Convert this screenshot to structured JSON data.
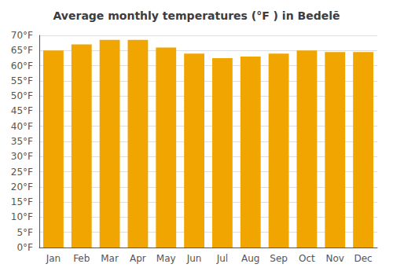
{
  "chart_data": {
    "type": "bar",
    "title": "Average monthly temperatures (°F ) in Bedelē",
    "categories": [
      "Jan",
      "Feb",
      "Mar",
      "Apr",
      "May",
      "Jun",
      "Jul",
      "Aug",
      "Sep",
      "Oct",
      "Nov",
      "Dec"
    ],
    "values": [
      65.0,
      67.0,
      68.5,
      68.5,
      66.0,
      64.0,
      62.5,
      63.0,
      64.0,
      65.0,
      64.5,
      64.5
    ],
    "color": "#F0A500",
    "ylim": [
      0,
      70
    ],
    "yticks": [
      {
        "value": 0,
        "label": "0°F"
      },
      {
        "value": 5,
        "label": "5°F"
      },
      {
        "value": 10,
        "label": "10°F"
      },
      {
        "value": 15,
        "label": "15°F"
      },
      {
        "value": 20,
        "label": "20°F"
      },
      {
        "value": 25,
        "label": "25°F"
      },
      {
        "value": 30,
        "label": "30°F"
      },
      {
        "value": 35,
        "label": "35°F"
      },
      {
        "value": 40,
        "label": "40°F"
      },
      {
        "value": 45,
        "label": "45°F"
      },
      {
        "value": 50,
        "label": "50°F"
      },
      {
        "value": 55,
        "label": "55°F"
      },
      {
        "value": 60,
        "label": "60°F"
      },
      {
        "value": 65,
        "label": "65°F"
      },
      {
        "value": 70,
        "label": "70°F"
      }
    ],
    "grid": true
  }
}
